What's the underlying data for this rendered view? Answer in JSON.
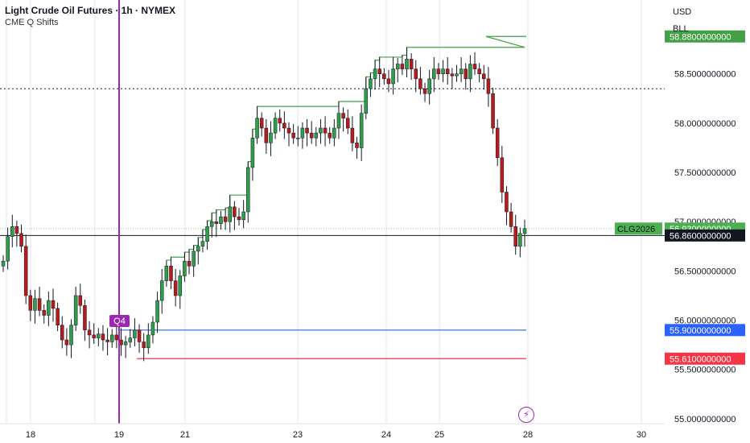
{
  "header": {
    "title": "Light Crude Oil Futures · 1h · NYMEX",
    "indicator": "CME Q Shifts"
  },
  "currency_labels": [
    "USD",
    "BLL"
  ],
  "alert_icon": "lightning-icon",
  "colors": {
    "up": "#26a69a",
    "up_body": "#2e9e48",
    "down": "#b71c1c",
    "shift_line": "#43a047",
    "blue_line": "#2962ff",
    "red_line": "#f23645",
    "session_line": "#9c27b0",
    "grid": "#e0e3eb"
  },
  "chart_data": {
    "type": "candlestick",
    "x_tick_labels": [
      "18",
      "19",
      "21",
      "23",
      "24",
      "25",
      "28",
      "30"
    ],
    "y_tick_labels": [
      "55.0000000000",
      "55.5000000000",
      "56.0000000000",
      "56.5000000000",
      "57.0000000000",
      "57.5000000000",
      "58.0000000000",
      "58.5000000000"
    ],
    "ylim": [
      54.95,
      59.25
    ],
    "price_labels": [
      {
        "text": "58.8800000000",
        "value": 58.88,
        "color": "#43a047"
      },
      {
        "text": "56.9300000000",
        "value": 56.93,
        "color": "#4caf50",
        "tag": "CLG2026"
      },
      {
        "text": "56.8600000000",
        "value": 56.86,
        "color": "#131722"
      },
      {
        "text": "55.9000000000",
        "value": 55.9,
        "color": "#2962ff"
      },
      {
        "text": "55.6100000000",
        "value": 55.61,
        "color": "#f23645"
      }
    ],
    "horizontal_lines": [
      {
        "name": "dotted-level",
        "value": 58.35,
        "style": "dotted",
        "color": "#131722"
      },
      {
        "name": "current-price",
        "value": 56.86,
        "style": "solid",
        "color": "#131722"
      }
    ],
    "session_marker": {
      "label": "Q4",
      "color": "#9c27b0"
    },
    "series_candles": [
      56.6,
      56.85,
      56.95,
      56.88,
      56.75,
      56.25,
      56.1,
      56.22,
      56.1,
      56.05,
      56.2,
      56.12,
      55.95,
      55.8,
      55.75,
      55.95,
      56.25,
      56.15,
      55.9,
      55.85,
      55.82,
      55.86,
      55.8,
      55.78,
      55.85,
      55.8,
      55.75,
      55.78,
      55.82,
      55.9,
      55.78,
      55.72,
      55.85,
      55.98,
      56.2,
      56.4,
      56.55,
      56.4,
      56.25,
      56.45,
      56.6,
      56.55,
      56.7,
      56.75,
      56.8,
      56.95,
      57.0,
      56.98,
      57.05,
      57.0,
      57.15,
      57.05,
      57.02,
      57.1,
      57.55,
      57.85,
      58.05,
      57.95,
      57.8,
      57.9,
      58.05,
      58.0,
      57.95,
      57.9,
      57.85,
      57.85,
      57.95,
      57.9,
      57.85,
      57.9,
      57.95,
      57.9,
      57.85,
      57.95,
      58.1,
      58.05,
      57.95,
      57.8,
      57.75,
      58.1,
      58.35,
      58.45,
      58.55,
      58.5,
      58.45,
      58.4,
      58.55,
      58.6,
      58.55,
      58.65,
      58.55,
      58.45,
      58.35,
      58.3,
      58.45,
      58.55,
      58.5,
      58.55,
      58.5,
      58.48,
      58.5,
      58.55,
      58.45,
      58.6,
      58.55,
      58.5,
      58.45,
      58.3,
      57.95,
      57.65,
      57.3,
      57.1,
      56.95,
      56.75,
      56.88,
      56.93
    ],
    "shift_line_start": 55.6,
    "blue_line_value": 55.9,
    "red_line_value": 55.61
  }
}
